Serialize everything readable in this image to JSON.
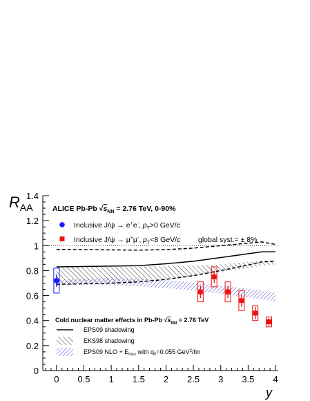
{
  "chart_data": {
    "type": "scatter",
    "xlabel": "y",
    "ylabel": "R",
    "ylabel_sub": "AA",
    "xlim": [
      -0.25,
      4.05
    ],
    "ylim": [
      0,
      1.4
    ],
    "x_ticks": [
      0,
      0.5,
      1,
      1.5,
      2,
      2.5,
      3,
      3.5,
      4
    ],
    "x_tick_labels": [
      "0",
      "0.5",
      "1",
      "1.5",
      "2",
      "2.5",
      "3",
      "3.5",
      "4"
    ],
    "y_ticks": [
      0,
      0.2,
      0.4,
      0.6,
      0.8,
      1,
      1.2,
      1.4
    ],
    "y_tick_labels": [
      "0",
      "0.2",
      "0.4",
      "0.6",
      "0.8",
      "1",
      "1.2",
      "1.4"
    ],
    "reference_line": 1,
    "header": {
      "prefix": "ALICE Pb-Pb  ",
      "sqrt": "s",
      "sub": "NN",
      "suffix": " = 2.76 TeV, 0-90%"
    },
    "global_syst": "global syst.= ± 8%",
    "series": [
      {
        "name": "Inclusive J/ψ → e⁺e⁻, pT>0 GeV/c",
        "legend_main": "Inclusive J/ψ → e",
        "legend_sup1": "+",
        "legend_mid1": "e",
        "legend_sup2": "-",
        "legend_mid2": ", ",
        "legend_italic": "p",
        "legend_sub": "T",
        "legend_tail": ">0 GeV/",
        "legend_unit": "c",
        "color": "#1a1aff",
        "marker": "circle",
        "x": [
          0
        ],
        "y": [
          0.72
        ],
        "stat_err": [
          0.05
        ],
        "syst_err": [
          0.1
        ],
        "box_halfwidth": 0.05
      },
      {
        "name": "Inclusive J/ψ → μ⁺μ⁻, pT<8 GeV/c",
        "legend_main": "Inclusive J/ψ → μ",
        "legend_sup1": "+",
        "legend_mid1": "μ",
        "legend_sup2": "-",
        "legend_mid2": ", ",
        "legend_italic": "p",
        "legend_sub": "T",
        "legend_tail": "<8 GeV/",
        "legend_unit": "c",
        "color": "#ee1111",
        "marker": "square",
        "x": [
          2.63,
          2.88,
          3.13,
          3.38,
          3.63,
          3.88
        ],
        "y": [
          0.63,
          0.75,
          0.63,
          0.56,
          0.46,
          0.39
        ],
        "stat_err": [
          0.05,
          0.05,
          0.05,
          0.05,
          0.05,
          0.03
        ],
        "syst_err": [
          0.08,
          0.08,
          0.08,
          0.08,
          0.06,
          0.04
        ],
        "box_halfwidth": 0.05
      }
    ],
    "theory": {
      "title_prefix": "Cold nuclear matter effects in Pb-Pb  ",
      "title_sqrt": "s",
      "title_sub": "NN",
      "title_suffix": " = 2.76 TeV",
      "eps09": {
        "label": "EPS09 shadowing",
        "x": [
          0,
          0.5,
          1,
          1.5,
          2,
          2.5,
          3,
          3.5,
          3.75,
          4
        ],
        "central": [
          0.83,
          0.833,
          0.836,
          0.84,
          0.855,
          0.875,
          0.905,
          0.935,
          0.95,
          0.95
        ],
        "upper": [
          0.97,
          0.968,
          0.966,
          0.964,
          0.968,
          0.98,
          1.0,
          1.02,
          1.03,
          1.01
        ],
        "lower": [
          0.69,
          0.695,
          0.7,
          0.71,
          0.73,
          0.76,
          0.8,
          0.845,
          0.87,
          0.875
        ]
      },
      "eks98": {
        "label": "EKS98 shadowing",
        "x": [
          0,
          0.5,
          1,
          1.5,
          2,
          2.5,
          3,
          3.5,
          3.75,
          4
        ],
        "upper": [
          0.825,
          0.828,
          0.83,
          0.832,
          0.835,
          0.84,
          0.85,
          0.87,
          0.88,
          0.88
        ],
        "lower": [
          0.7,
          0.705,
          0.71,
          0.72,
          0.735,
          0.76,
          0.79,
          0.82,
          0.84,
          0.85
        ]
      },
      "eloss": {
        "label_prefix": "EPS09 NLO + E",
        "label_sub1": "loss",
        "label_mid": " with q",
        "label_sub2": "0",
        "label_mid2": "=0.055 GeV",
        "label_sup": "2",
        "label_suffix": "/fm",
        "x": [
          0,
          0.5,
          1,
          1.5,
          2,
          2.5,
          3,
          3.5,
          4
        ],
        "upper": [
          0.725,
          0.735,
          0.74,
          0.735,
          0.725,
          0.705,
          0.68,
          0.655,
          0.625
        ],
        "lower": [
          0.68,
          0.685,
          0.685,
          0.675,
          0.66,
          0.64,
          0.615,
          0.585,
          0.555
        ]
      }
    },
    "grid": false,
    "legend_position": "top-left",
    "colors": {
      "eloss": "#4444cc",
      "ref_line": "#000000"
    }
  }
}
